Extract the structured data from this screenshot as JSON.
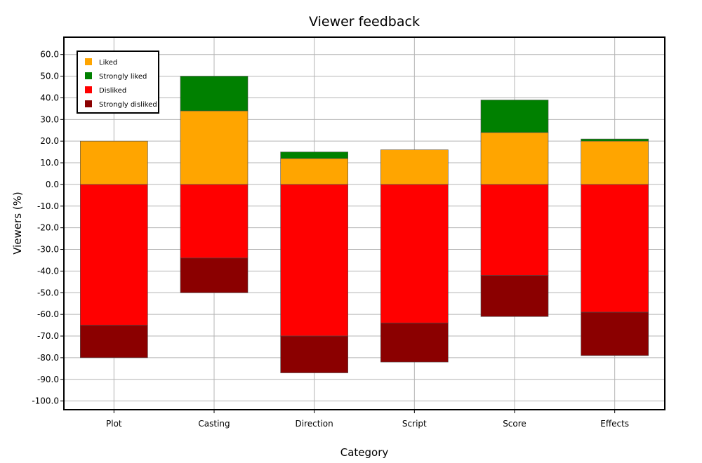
{
  "chart_data": {
    "type": "bar",
    "stacked": "diverging",
    "title": "Viewer feedback",
    "xlabel": "Category",
    "ylabel": "Viewers (%)",
    "categories": [
      "Plot",
      "Casting",
      "Direction",
      "Script",
      "Score",
      "Effects"
    ],
    "ylim": [
      -104,
      68
    ],
    "yticks": [
      60.0,
      50.0,
      40.0,
      30.0,
      20.0,
      10.0,
      0.0,
      -10.0,
      -20.0,
      -30.0,
      -40.0,
      -50.0,
      -60.0,
      -70.0,
      -80.0,
      -90.0,
      -100.0
    ],
    "ytick_labels": [
      "60.0",
      "50.0",
      "40.0",
      "30.0",
      "20.0",
      "10.0",
      "0.0",
      "-10.0",
      "-20.0",
      "-30.0",
      "-40.0",
      "-50.0",
      "-60.0",
      "-70.0",
      "-80.0",
      "-90.0",
      "-100.0"
    ],
    "grid": true,
    "legend_position": "top-left",
    "series": [
      {
        "name": "Liked",
        "color": "#ffa500",
        "values": [
          20,
          34,
          12,
          16,
          24,
          20
        ]
      },
      {
        "name": "Strongly liked",
        "color": "#008000",
        "values": [
          0,
          16,
          3,
          0,
          15,
          1
        ]
      },
      {
        "name": "Disliked",
        "color": "#ff0000",
        "values": [
          -65,
          -34,
          -70,
          -64,
          -42,
          -59
        ]
      },
      {
        "name": "Strongly disliked",
        "color": "#8b0000",
        "values": [
          -15,
          -16,
          -17,
          -18,
          -19,
          -20
        ]
      }
    ]
  }
}
